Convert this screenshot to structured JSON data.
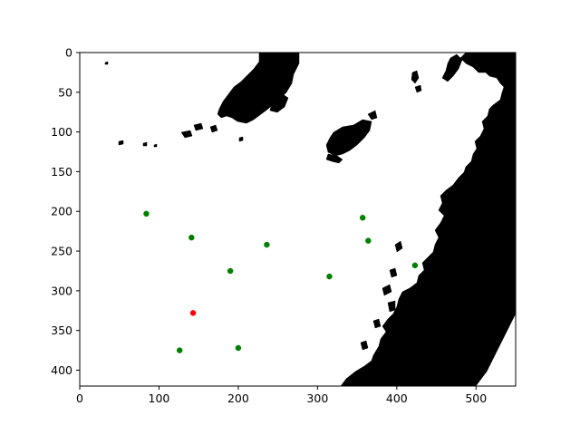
{
  "chart_data": {
    "type": "scatter",
    "title": "",
    "xlabel": "",
    "ylabel": "",
    "xlim": [
      0,
      550
    ],
    "ylim": [
      420,
      0
    ],
    "y_inverted": true,
    "grid": false,
    "background": "binary land/sea image (land black, water white)",
    "x_ticks": [
      0,
      100,
      200,
      300,
      400,
      500
    ],
    "y_ticks": [
      0,
      50,
      100,
      150,
      200,
      250,
      300,
      350,
      400
    ],
    "x_tick_labels": [
      "0",
      "100",
      "200",
      "300",
      "400",
      "500"
    ],
    "y_tick_labels": [
      "0",
      "50",
      "100",
      "150",
      "200",
      "250",
      "300",
      "350",
      "400"
    ],
    "series": [
      {
        "color": "#008000",
        "points": [
          {
            "x": 84,
            "y": 203
          },
          {
            "x": 141,
            "y": 233
          },
          {
            "x": 236,
            "y": 242
          },
          {
            "x": 190,
            "y": 275
          },
          {
            "x": 315,
            "y": 282
          },
          {
            "x": 357,
            "y": 208
          },
          {
            "x": 364,
            "y": 237
          },
          {
            "x": 423,
            "y": 268
          },
          {
            "x": 126,
            "y": 375
          },
          {
            "x": 200,
            "y": 372
          }
        ]
      },
      {
        "color": "#ff0000",
        "points": [
          {
            "x": 143,
            "y": 328
          }
        ]
      }
    ]
  }
}
